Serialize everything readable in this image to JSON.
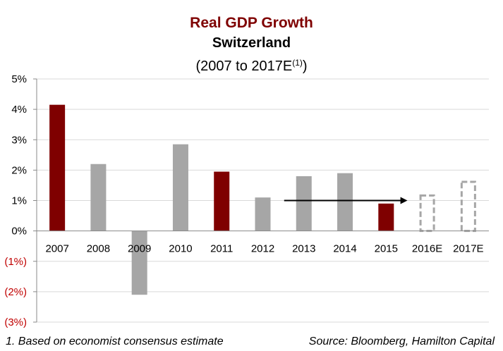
{
  "titles": {
    "line1": "Real GDP Growth",
    "line2": "Switzerland",
    "line3": "(2007 to 2017E",
    "line3_sup": "(1)",
    "line3_end": ")"
  },
  "footnote": "1. Based on economist consensus estimate",
  "source": "Source: Bloomberg, Hamilton Capital",
  "colors": {
    "title": "#7f0000",
    "highlight": "#7f0000",
    "normal": "#a6a6a6",
    "estimate_outline": "#a6a6a6",
    "negative_tick": "#c00000",
    "grid": "#d9d9d9"
  },
  "chart_data": {
    "type": "bar",
    "categories": [
      "2007",
      "2008",
      "2009",
      "2010",
      "2011",
      "2012",
      "2013",
      "2014",
      "2015",
      "2016E",
      "2017E"
    ],
    "values": [
      4.15,
      2.2,
      -2.1,
      2.85,
      1.95,
      1.1,
      1.8,
      1.9,
      0.9,
      1.2,
      1.65
    ],
    "bar_style": [
      "highlight",
      "normal",
      "normal",
      "normal",
      "highlight",
      "normal",
      "normal",
      "normal",
      "highlight",
      "estimate",
      "estimate"
    ],
    "ylim": [
      -3,
      5
    ],
    "yticks": [
      5,
      4,
      3,
      2,
      1,
      0,
      -1,
      -2,
      -3
    ],
    "ytick_labels": [
      "5%",
      "4%",
      "3%",
      "2%",
      "1%",
      "0%",
      "(1%)",
      "(2%)",
      "(3%)"
    ],
    "grid": true,
    "annotation": {
      "type": "arrow",
      "from_category": "2013",
      "to_category": "2016E",
      "value": 1.0
    }
  }
}
